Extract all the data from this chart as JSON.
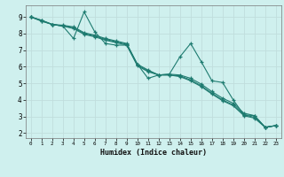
{
  "xlabel": "Humidex (Indice chaleur)",
  "background_color": "#cff0ee",
  "grid_color": "#c0dedd",
  "line_color": "#1e7b70",
  "xlim": [
    -0.5,
    23.5
  ],
  "ylim": [
    1.7,
    9.7
  ],
  "yticks": [
    2,
    3,
    4,
    5,
    6,
    7,
    8,
    9
  ],
  "xticks": [
    0,
    1,
    2,
    3,
    4,
    5,
    6,
    7,
    8,
    9,
    10,
    11,
    12,
    13,
    14,
    15,
    16,
    17,
    18,
    19,
    20,
    21,
    22,
    23
  ],
  "lines": [
    {
      "x": [
        0,
        1,
        2,
        3,
        4,
        5,
        6,
        7,
        8,
        9,
        10,
        11,
        12,
        13,
        14,
        15,
        16,
        17,
        18,
        19,
        20,
        21,
        22,
        23
      ],
      "y": [
        9.0,
        8.8,
        8.55,
        8.45,
        7.7,
        9.3,
        8.1,
        7.4,
        7.3,
        7.3,
        6.15,
        5.3,
        5.5,
        5.55,
        6.6,
        7.4,
        6.3,
        5.15,
        5.05,
        4.0,
        3.1,
        3.05,
        2.35,
        2.45
      ]
    },
    {
      "x": [
        0,
        1,
        2,
        3,
        4,
        5,
        6,
        7,
        8,
        9,
        10,
        11,
        12,
        13,
        14,
        15,
        16,
        17,
        18,
        19,
        20,
        21,
        22,
        23
      ],
      "y": [
        9.0,
        8.8,
        8.55,
        8.5,
        8.4,
        8.05,
        7.9,
        7.7,
        7.55,
        7.4,
        6.15,
        5.8,
        5.5,
        5.55,
        5.5,
        5.3,
        4.95,
        4.5,
        4.1,
        3.8,
        3.2,
        3.05,
        2.35,
        2.45
      ]
    },
    {
      "x": [
        0,
        1,
        2,
        3,
        4,
        5,
        6,
        7,
        8,
        9,
        10,
        11,
        12,
        13,
        14,
        15,
        16,
        17,
        18,
        19,
        20,
        21,
        22,
        23
      ],
      "y": [
        9.0,
        8.75,
        8.55,
        8.45,
        8.35,
        8.0,
        7.85,
        7.65,
        7.5,
        7.35,
        6.1,
        5.75,
        5.5,
        5.5,
        5.45,
        5.2,
        4.85,
        4.4,
        4.0,
        3.7,
        3.1,
        2.95,
        2.35,
        2.45
      ]
    },
    {
      "x": [
        0,
        1,
        2,
        3,
        4,
        5,
        6,
        7,
        8,
        9,
        10,
        11,
        12,
        13,
        14,
        15,
        16,
        17,
        18,
        19,
        20,
        21,
        22,
        23
      ],
      "y": [
        9.0,
        8.75,
        8.55,
        8.45,
        8.3,
        7.95,
        7.8,
        7.6,
        7.45,
        7.3,
        6.05,
        5.7,
        5.5,
        5.5,
        5.4,
        5.15,
        4.8,
        4.35,
        3.95,
        3.65,
        3.05,
        2.9,
        2.35,
        2.45
      ]
    }
  ]
}
